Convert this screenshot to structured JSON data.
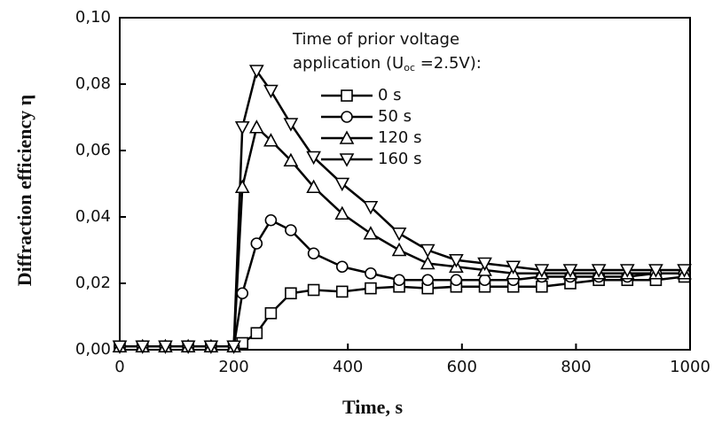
{
  "chart_data": {
    "type": "line",
    "xlabel": "Time, s",
    "ylabel": "Diffraction efficiency η",
    "legend_title": [
      "Time of prior voltage",
      "application (U",
      "oc",
      " =2.5V):"
    ],
    "x": [
      0,
      40,
      80,
      120,
      160,
      200,
      215,
      240,
      265,
      300,
      340,
      390,
      440,
      490,
      540,
      590,
      640,
      690,
      740,
      790,
      840,
      890,
      940,
      990
    ],
    "series": [
      {
        "name": "0 s",
        "marker": "square",
        "color": "#000000",
        "values": [
          0.001,
          0.001,
          0.001,
          0.001,
          0.001,
          0.001,
          0.002,
          0.005,
          0.011,
          0.017,
          0.018,
          0.0175,
          0.0185,
          0.019,
          0.0185,
          0.019,
          0.019,
          0.019,
          0.019,
          0.02,
          0.021,
          0.021,
          0.021,
          0.022
        ]
      },
      {
        "name": "50 s",
        "marker": "circle",
        "color": "#000000",
        "values": [
          0.001,
          0.001,
          0.001,
          0.001,
          0.001,
          0.001,
          0.017,
          0.032,
          0.039,
          0.036,
          0.029,
          0.025,
          0.023,
          0.021,
          0.021,
          0.021,
          0.021,
          0.021,
          0.022,
          0.022,
          0.022,
          0.022,
          0.023,
          0.023
        ]
      },
      {
        "name": "120 s",
        "marker": "triangle-up",
        "color": "#000000",
        "values": [
          0.001,
          0.001,
          0.001,
          0.001,
          0.001,
          0.001,
          0.049,
          0.067,
          0.063,
          0.057,
          0.049,
          0.041,
          0.035,
          0.03,
          0.026,
          0.025,
          0.024,
          0.023,
          0.023,
          0.023,
          0.023,
          0.023,
          0.023,
          0.023
        ]
      },
      {
        "name": "160 s",
        "marker": "triangle-down",
        "color": "#000000",
        "values": [
          0.001,
          0.001,
          0.001,
          0.001,
          0.001,
          0.001,
          0.067,
          0.084,
          0.078,
          0.068,
          0.058,
          0.05,
          0.043,
          0.035,
          0.03,
          0.027,
          0.026,
          0.025,
          0.024,
          0.024,
          0.024,
          0.024,
          0.024,
          0.024
        ]
      }
    ],
    "xlim": [
      0,
      1000
    ],
    "xticks": [
      0,
      200,
      400,
      600,
      800,
      1000
    ],
    "ylim": [
      0,
      0.1
    ],
    "yticks": [
      {
        "value": 0,
        "label": "0,00"
      },
      {
        "value": 0.02,
        "label": "0,02"
      },
      {
        "value": 0.04,
        "label": "0,04"
      },
      {
        "value": 0.06,
        "label": "0,06"
      },
      {
        "value": 0.08,
        "label": "0,08"
      },
      {
        "value": 0.1,
        "label": "0,10"
      }
    ],
    "grid": false,
    "legend": "upper right"
  }
}
